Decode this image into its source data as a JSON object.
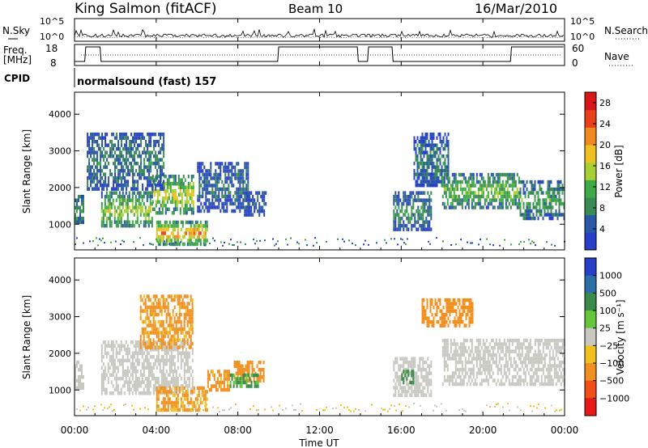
{
  "header": {
    "station": "King Salmon (fitACF)",
    "beam": "Beam 10",
    "date": "16/Mar/2010"
  },
  "top_panel": {
    "left_label": "N.Sky",
    "left_ticks": [
      "10^5",
      "10^0"
    ],
    "right_label": "N.Search",
    "right_ticks": [
      "10^5",
      "10^0"
    ]
  },
  "freq_panel": {
    "left_label_1": "Freq.",
    "left_label_2": "[MHz]",
    "left_ticks": [
      "18",
      "8"
    ],
    "right_label": "Nave",
    "right_ticks": [
      "60",
      "0"
    ]
  },
  "cpid": {
    "label": "CPID",
    "value": "normalsound (fast) 157"
  },
  "colors": {
    "power_scale": [
      "#2a3fc8",
      "#2a58a8",
      "#3a8a55",
      "#3faa48",
      "#a8cf33",
      "#f0c020",
      "#f08a20",
      "#e84018",
      "#d81818"
    ],
    "velocity_scale": [
      "#2a3fc8",
      "#2a6fa8",
      "#3a8a4a",
      "#66c63a",
      "#c8c8c0",
      "#f0c020",
      "#f09020",
      "#f05018",
      "#e81818"
    ]
  },
  "chart_data": [
    {
      "type": "heatmap",
      "title": "Power",
      "xlabel": "Time UT",
      "ylabel": "Slant Range [km]",
      "x_ticks": [
        "00:00",
        "04:00",
        "08:00",
        "12:00",
        "16:00",
        "20:00",
        "00:00"
      ],
      "y_ticks": [
        "1000",
        "2000",
        "3000",
        "4000"
      ],
      "ylim": [
        300,
        4600
      ],
      "colorbar": {
        "label": "Power [dB]",
        "ticks": [
          "4",
          "8",
          "12",
          "16",
          "20",
          "24",
          "28"
        ],
        "range": [
          0,
          30
        ]
      },
      "regions": [
        {
          "t0": 0.0,
          "t1": 0.4,
          "r0": 1050,
          "r1": 1800,
          "level": 0.35
        },
        {
          "t0": 1.3,
          "t1": 3.8,
          "r0": 950,
          "r1": 1900,
          "level": 0.5
        },
        {
          "t0": 3.8,
          "t1": 5.8,
          "r0": 1300,
          "r1": 2350,
          "level": 0.55
        },
        {
          "t0": 0.6,
          "t1": 4.4,
          "r0": 2000,
          "r1": 3500,
          "level": 0.25
        },
        {
          "t0": 4.0,
          "t1": 6.5,
          "r0": 500,
          "r1": 1100,
          "level": 0.7
        },
        {
          "t0": 6.0,
          "t1": 8.5,
          "r0": 1400,
          "r1": 2700,
          "level": 0.2
        },
        {
          "t0": 8.3,
          "t1": 9.4,
          "r0": 1300,
          "r1": 1900,
          "level": 0.18
        },
        {
          "t0": 15.6,
          "t1": 17.5,
          "r0": 900,
          "r1": 1900,
          "level": 0.3
        },
        {
          "t0": 16.6,
          "t1": 18.3,
          "r0": 2100,
          "r1": 3500,
          "level": 0.25
        },
        {
          "t0": 18.0,
          "t1": 21.8,
          "r0": 1500,
          "r1": 2400,
          "level": 0.45
        },
        {
          "t0": 21.8,
          "t1": 24.0,
          "r0": 1150,
          "r1": 2200,
          "level": 0.35
        }
      ]
    },
    {
      "type": "heatmap",
      "title": "Velocity",
      "xlabel": "Time UT",
      "ylabel": "Slant Range [km]",
      "x_ticks": [
        "00:00",
        "04:00",
        "08:00",
        "12:00",
        "16:00",
        "20:00",
        "00:00"
      ],
      "y_ticks": [
        "1000",
        "2000",
        "3000",
        "4000"
      ],
      "ylim": [
        300,
        4600
      ],
      "colorbar": {
        "label": "Velocity [m s⁻¹]",
        "ticks": [
          "1000",
          "500",
          "100",
          "25",
          "−25",
          "−100",
          "−500",
          "−1000"
        ]
      },
      "regions": [
        {
          "t0": 0.0,
          "t1": 0.4,
          "r0": 1050,
          "r1": 1800,
          "vel": 0
        },
        {
          "t0": 1.3,
          "t1": 5.8,
          "r0": 950,
          "r1": 2350,
          "vel": 0
        },
        {
          "t0": 4.0,
          "t1": 6.5,
          "r0": 500,
          "r1": 1100,
          "vel": -120
        },
        {
          "t0": 6.5,
          "t1": 7.6,
          "r0": 1000,
          "r1": 1550,
          "vel": -150
        },
        {
          "t0": 7.8,
          "t1": 9.3,
          "r0": 1300,
          "r1": 1800,
          "vel": -200
        },
        {
          "t0": 7.6,
          "t1": 9.0,
          "r0": 1150,
          "r1": 1450,
          "vel": 120
        },
        {
          "t0": 3.2,
          "t1": 5.8,
          "r0": 2200,
          "r1": 3600,
          "vel": -150
        },
        {
          "t0": 15.6,
          "t1": 17.5,
          "r0": 900,
          "r1": 1900,
          "vel": 0
        },
        {
          "t0": 16.0,
          "t1": 16.6,
          "r0": 1250,
          "r1": 1550,
          "vel": 150
        },
        {
          "t0": 17.0,
          "t1": 19.5,
          "r0": 2800,
          "r1": 3500,
          "vel": -250
        },
        {
          "t0": 18.0,
          "t1": 24.0,
          "r0": 1200,
          "r1": 2400,
          "vel": 0
        }
      ]
    }
  ]
}
